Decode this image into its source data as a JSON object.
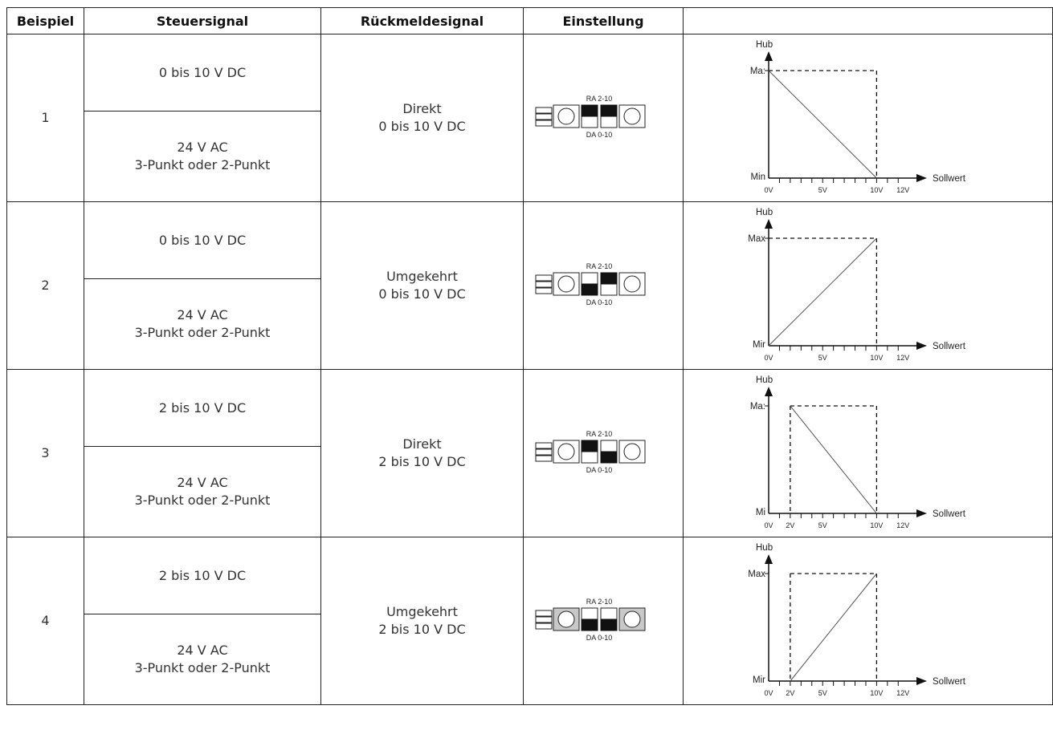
{
  "table": {
    "headers": [
      "Beispiel",
      "Steuersignal",
      "Rückmeldesignal",
      "Einstellung",
      ""
    ],
    "rows": [
      {
        "number": "1",
        "control_top": "0 bis 10 V DC",
        "control_bottom": "24 V AC\n3-Punkt oder 2-Punkt",
        "feedback": "Direkt\n0 bis 10 V DC",
        "switch": {
          "top_label": "RA 2-10",
          "bottom_label": "DA 0-10",
          "switch1": "RA",
          "switch2": "RA",
          "shaded": false
        },
        "chart_data": {
          "type": "line",
          "ylabel": "Hub",
          "xlabel": "Sollwert",
          "ytick_labels": [
            "Ma:",
            "Min"
          ],
          "xtick_labels": [
            "0V",
            "5V",
            "10V",
            "12V"
          ],
          "series": [
            {
              "x": [
                0,
                10
              ],
              "y": [
                1,
                0
              ]
            }
          ],
          "dashed_guides": {
            "start_x": 0,
            "end_x": 10
          },
          "xlim": [
            0,
            12.5
          ],
          "ylim": [
            0,
            1
          ]
        }
      },
      {
        "number": "2",
        "control_top": "0 bis 10 V DC",
        "control_bottom": "24 V AC\n3-Punkt oder 2-Punkt",
        "feedback": "Umgekehrt\n0 bis 10 V DC",
        "switch": {
          "top_label": "RA 2-10",
          "bottom_label": "DA 0-10",
          "switch1": "DA",
          "switch2": "RA",
          "shaded": false
        },
        "chart_data": {
          "type": "line",
          "ylabel": "Hub",
          "xlabel": "Sollwert",
          "ytick_labels": [
            "Max",
            "Mir"
          ],
          "xtick_labels": [
            "0V",
            "5V",
            "10V",
            "12V"
          ],
          "series": [
            {
              "x": [
                0,
                10
              ],
              "y": [
                0,
                1
              ]
            }
          ],
          "dashed_guides": {
            "start_x": 0,
            "end_x": 10
          },
          "xlim": [
            0,
            12.5
          ],
          "ylim": [
            0,
            1
          ]
        }
      },
      {
        "number": "3",
        "control_top": "2 bis 10 V DC",
        "control_bottom": "24 V AC\n3-Punkt oder 2-Punkt",
        "feedback": "Direkt\n2 bis 10 V DC",
        "switch": {
          "top_label": "RA 2-10",
          "bottom_label": "DA 0-10",
          "switch1": "RA",
          "switch2": "DA",
          "shaded": false
        },
        "chart_data": {
          "type": "line",
          "ylabel": "Hub",
          "xlabel": "Sollwert",
          "ytick_labels": [
            "Ma:",
            "Mi"
          ],
          "xtick_labels": [
            "0V",
            "2V",
            "5V",
            "10V",
            "12V"
          ],
          "series": [
            {
              "x": [
                2,
                10
              ],
              "y": [
                1,
                0
              ]
            }
          ],
          "dashed_guides": {
            "start_x": 2,
            "end_x": 10
          },
          "xlim": [
            0,
            12.5
          ],
          "ylim": [
            0,
            1
          ]
        }
      },
      {
        "number": "4",
        "control_top": "2 bis 10 V DC",
        "control_bottom": "24 V AC\n3-Punkt oder 2-Punkt",
        "feedback": "Umgekehrt\n2 bis 10 V DC",
        "switch": {
          "top_label": "RA 2-10",
          "bottom_label": "DA 0-10",
          "switch1": "DA",
          "switch2": "DA",
          "shaded": true
        },
        "chart_data": {
          "type": "line",
          "ylabel": "Hub",
          "xlabel": "Sollwert",
          "ytick_labels": [
            "Max",
            "Mir"
          ],
          "xtick_labels": [
            "0V",
            "2V",
            "5V",
            "10V",
            "12V"
          ],
          "series": [
            {
              "x": [
                2,
                10
              ],
              "y": [
                0,
                1
              ]
            }
          ],
          "dashed_guides": {
            "start_x": 2,
            "end_x": 10
          },
          "xlim": [
            0,
            12.5
          ],
          "ylim": [
            0,
            1
          ]
        }
      }
    ]
  }
}
